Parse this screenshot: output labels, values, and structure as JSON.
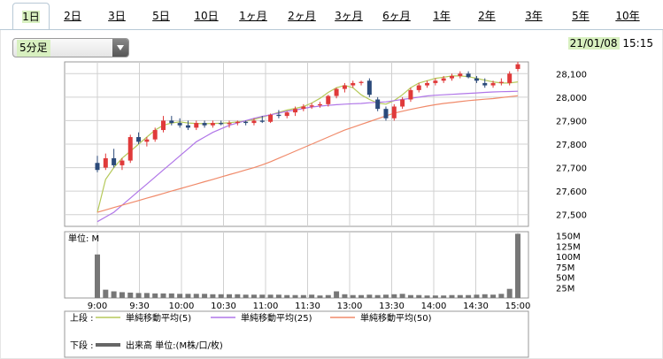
{
  "tabs": [
    "1日",
    "2日",
    "3日",
    "5日",
    "10日",
    "1ヶ月",
    "2ヶ月",
    "3ヶ月",
    "6ヶ月",
    "1年",
    "2年",
    "3年",
    "5年",
    "10年"
  ],
  "active_tab": 0,
  "interval": "5分足",
  "date": "21/01/08",
  "time": "15:15",
  "chart_data": {
    "type": "candlestick",
    "xlabel": "",
    "ylabel": "",
    "x_ticks": [
      "9:00",
      "9:30",
      "10:00",
      "10:30",
      "11:00",
      "11:30",
      "13:00",
      "13:30",
      "14:00",
      "14:30",
      "15:00"
    ],
    "y_ticks": [
      27500,
      27600,
      27700,
      27800,
      27900,
      28000,
      28100
    ],
    "ylim": [
      27450,
      28150
    ],
    "candles": [
      [
        27720,
        27750,
        27680,
        27690
      ],
      [
        27700,
        27760,
        27690,
        27740
      ],
      [
        27740,
        27780,
        27700,
        27710
      ],
      [
        27710,
        27740,
        27690,
        27730
      ],
      [
        27730,
        27840,
        27720,
        27830
      ],
      [
        27830,
        27850,
        27800,
        27810
      ],
      [
        27810,
        27830,
        27790,
        27820
      ],
      [
        27820,
        27870,
        27810,
        27860
      ],
      [
        27860,
        27920,
        27850,
        27900
      ],
      [
        27900,
        27920,
        27880,
        27890
      ],
      [
        27890,
        27910,
        27870,
        27880
      ],
      [
        27880,
        27900,
        27860,
        27870
      ],
      [
        27870,
        27900,
        27860,
        27890
      ],
      [
        27890,
        27900,
        27870,
        27880
      ],
      [
        27880,
        27900,
        27870,
        27890
      ],
      [
        27890,
        27900,
        27880,
        27885
      ],
      [
        27885,
        27900,
        27870,
        27890
      ],
      [
        27890,
        27900,
        27880,
        27895
      ],
      [
        27895,
        27900,
        27880,
        27890
      ],
      [
        27890,
        27910,
        27880,
        27900
      ],
      [
        27900,
        27920,
        27890,
        27895
      ],
      [
        27895,
        27930,
        27890,
        27925
      ],
      [
        27925,
        27945,
        27910,
        27920
      ],
      [
        27920,
        27940,
        27910,
        27935
      ],
      [
        27935,
        27960,
        27920,
        27950
      ],
      [
        27950,
        27970,
        27940,
        27960
      ],
      [
        27960,
        27975,
        27950,
        27965
      ],
      [
        27965,
        27980,
        27955,
        27970
      ],
      [
        27970,
        28010,
        27960,
        28005
      ],
      [
        28005,
        28040,
        27995,
        28035
      ],
      [
        28035,
        28060,
        28020,
        28050
      ],
      [
        28050,
        28070,
        28040,
        28060
      ],
      [
        28060,
        28070,
        28050,
        28065
      ],
      [
        28070,
        28080,
        28000,
        28010
      ],
      [
        27990,
        28000,
        27940,
        27950
      ],
      [
        27950,
        27960,
        27900,
        27910
      ],
      [
        27910,
        27970,
        27900,
        27960
      ],
      [
        27960,
        28000,
        27950,
        27990
      ],
      [
        27990,
        28040,
        27980,
        28030
      ],
      [
        28030,
        28060,
        28020,
        28050
      ],
      [
        28050,
        28070,
        28040,
        28060
      ],
      [
        28060,
        28080,
        28050,
        28070
      ],
      [
        28070,
        28090,
        28060,
        28080
      ],
      [
        28080,
        28100,
        28070,
        28090
      ],
      [
        28090,
        28110,
        28080,
        28100
      ],
      [
        28100,
        28110,
        28080,
        28085
      ],
      [
        28080,
        28090,
        28060,
        28070
      ],
      [
        28060,
        28080,
        28040,
        28050
      ],
      [
        28050,
        28070,
        28040,
        28060
      ],
      [
        28060,
        28080,
        28050,
        28065
      ],
      [
        28060,
        28110,
        28050,
        28100
      ],
      [
        28120,
        28150,
        28110,
        28140
      ]
    ],
    "series": [
      {
        "name": "単純移動平均(5)",
        "color": "#b5c95a",
        "values": [
          27510,
          27650,
          27700,
          27740,
          27770,
          27800,
          27830,
          27860,
          27880,
          27890,
          27895,
          27890,
          27888,
          27887,
          27888,
          27889,
          27891,
          27895,
          27898,
          27905,
          27915,
          27925,
          27935,
          27945,
          27952,
          27960,
          27975,
          27995,
          28020,
          28040,
          28050,
          28040,
          28010,
          27990,
          27975,
          27970,
          27985,
          28010,
          28040,
          28060,
          28070,
          28080,
          28085,
          28090,
          28090,
          28087,
          28080,
          28072,
          28065,
          28060,
          28060,
          28065
        ]
      },
      {
        "name": "単純移動平均(25)",
        "color": "#b076e8",
        "values": [
          27470,
          27490,
          27510,
          27540,
          27570,
          27600,
          27630,
          27660,
          27690,
          27720,
          27750,
          27780,
          27810,
          27830,
          27850,
          27865,
          27880,
          27890,
          27900,
          27910,
          27918,
          27925,
          27932,
          27940,
          27945,
          27952,
          27958,
          27962,
          27965,
          27968,
          27970,
          27972,
          27973,
          27976,
          27978,
          27980,
          27985,
          27990,
          27995,
          28000,
          28005,
          28008,
          28010,
          28012,
          28014,
          28016,
          28018,
          28020,
          28022,
          28023,
          28024,
          28025
        ]
      },
      {
        "name": "単純移動平均(50)",
        "color": "#f08a6a",
        "values": [
          27510,
          27520,
          27530,
          27540,
          27550,
          27560,
          27570,
          27580,
          27590,
          27600,
          27610,
          27620,
          27630,
          27640,
          27650,
          27660,
          27670,
          27680,
          27690,
          27700,
          27712,
          27725,
          27740,
          27755,
          27770,
          27785,
          27800,
          27815,
          27830,
          27845,
          27860,
          27872,
          27884,
          27896,
          27908,
          27920,
          27932,
          27940,
          27948,
          27955,
          27962,
          27968,
          27973,
          27977,
          27981,
          27985,
          27988,
          27991,
          27994,
          27998,
          28002,
          28006
        ]
      }
    ],
    "volume": {
      "name": "出来高",
      "unit_label": "単位: M",
      "legend_unit": "単位:(M株/口/枚)",
      "y_ticks": [
        "150M",
        "125M",
        "100M",
        "75M",
        "50M",
        "25M"
      ],
      "ylim": [
        0,
        160
      ],
      "values": [
        105,
        20,
        16,
        14,
        13,
        12,
        12,
        11,
        11,
        11,
        10,
        10,
        10,
        10,
        9,
        9,
        9,
        9,
        8,
        8,
        8,
        8,
        8,
        7,
        7,
        7,
        8,
        6,
        7,
        16,
        9,
        7,
        7,
        8,
        7,
        8,
        9,
        10,
        7,
        7,
        6,
        6,
        6,
        7,
        7,
        7,
        8,
        9,
        8,
        10,
        22,
        155
      ]
    },
    "legend": {
      "upper_label": "上段 :",
      "lower_label": "下段 :",
      "upper": [
        "単純移動平均(5)",
        "単純移動平均(25)",
        "単純移動平均(50)"
      ],
      "lower": "出来高"
    }
  }
}
